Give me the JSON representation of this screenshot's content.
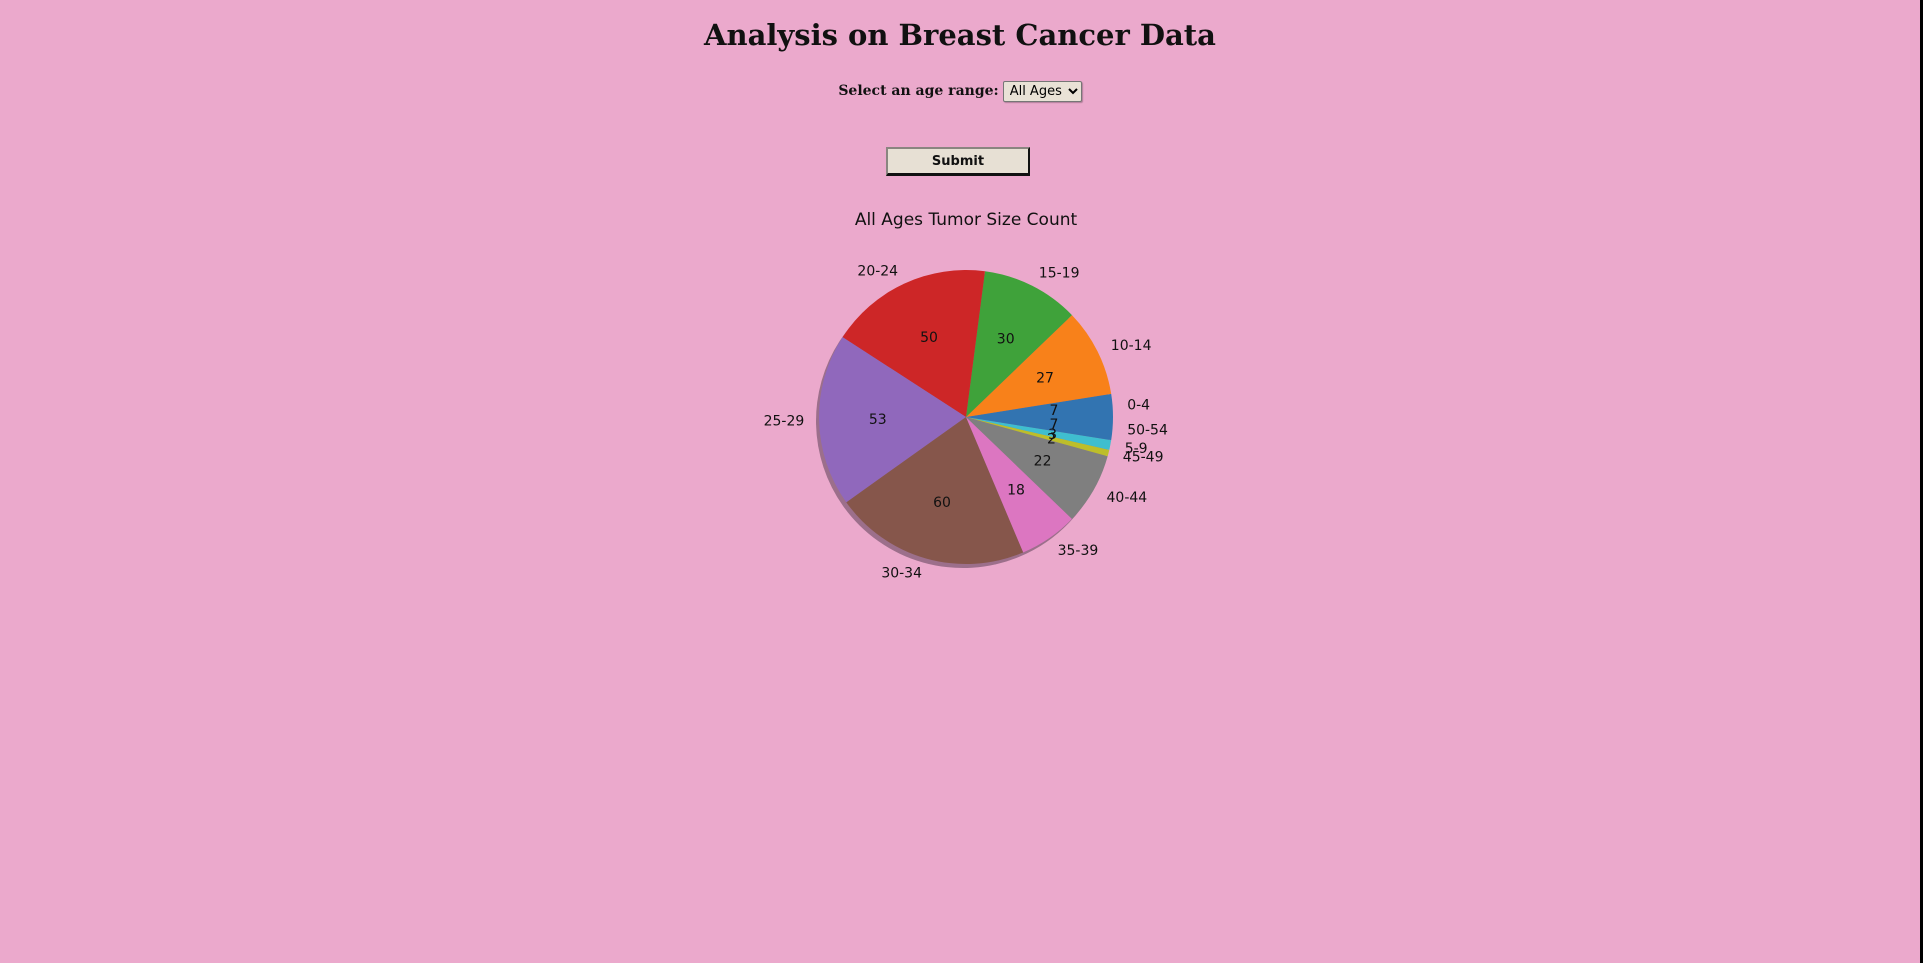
{
  "page": {
    "title": "Analysis on Breast Cancer Data",
    "background_color": "#EBA9CC"
  },
  "form": {
    "age_label": "Select an age range:",
    "age_select": {
      "selected": "All Ages"
    },
    "submit_label": "Submit"
  },
  "chart_data": {
    "type": "pie",
    "title": "All Ages Tumor Size Count",
    "start_angle": 0,
    "direction": "counterclockwise",
    "shadow": true,
    "categories": [
      "0-4",
      "10-14",
      "15-19",
      "20-24",
      "25-29",
      "30-34",
      "35-39",
      "40-44",
      "45-49",
      "5-9",
      "50-54"
    ],
    "values": [
      7,
      27,
      30,
      50,
      53,
      60,
      18,
      22,
      2,
      3,
      7
    ],
    "colors": [
      "#3274B1",
      "#F8811A",
      "#3FA23A",
      "#CD2627",
      "#9068BC",
      "#86564B",
      "#DC76C1",
      "#7F7F7F",
      "#BDBE2A",
      "#3FBECF",
      "#3274B1"
    ],
    "value_labels": [
      "7",
      "27",
      "30",
      "50",
      "53",
      "60",
      "18",
      "22",
      "2",
      "3",
      "7"
    ],
    "legend": null
  }
}
